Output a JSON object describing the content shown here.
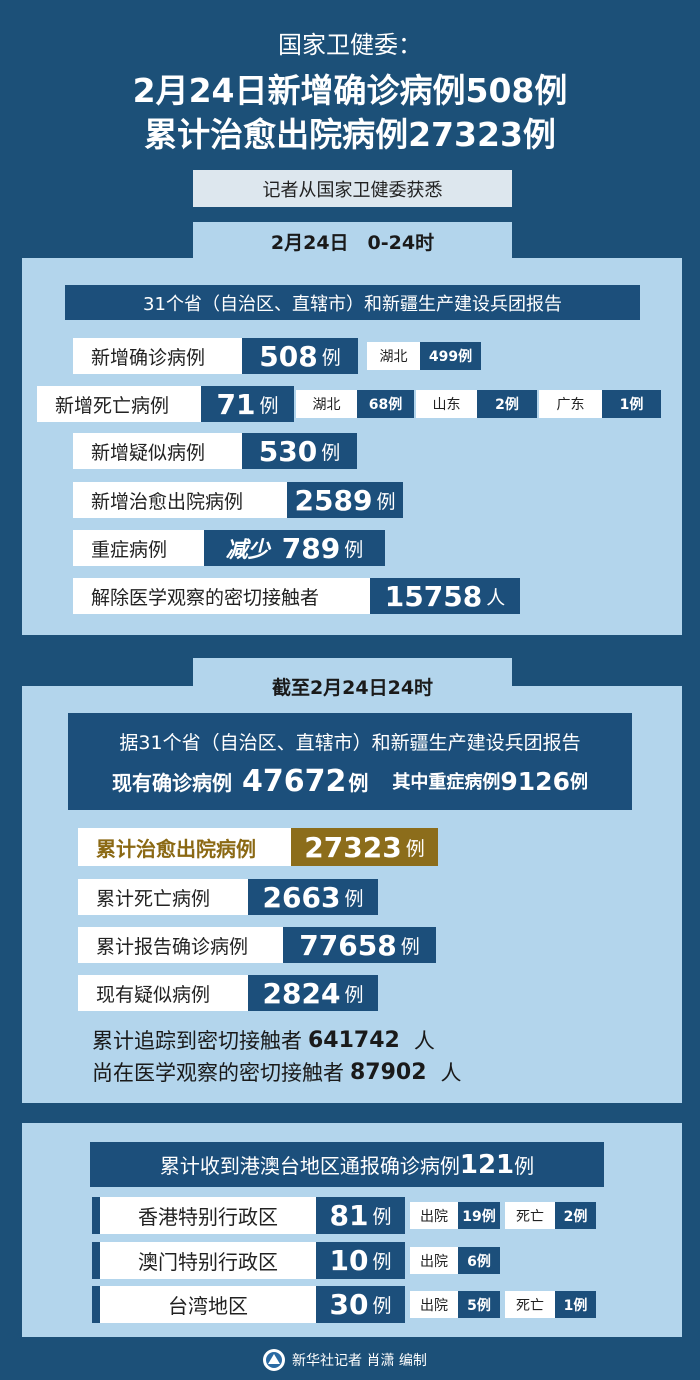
{
  "header": {
    "kicker": "国家卫健委：",
    "title": [
      "2月24日新增确诊病例508例",
      "累计治愈出院病例27323例"
    ]
  },
  "source": "记者从国家卫健委获悉",
  "daily": {
    "period": "2月24日　0-24时",
    "scope": "31个省（自治区、直辖市）和新疆生产建设兵团报告",
    "rows": [
      {
        "label": "新增确诊病例",
        "value": 508,
        "unit": "例",
        "regions": [
          {
            "name": "湖北",
            "count": "499例"
          }
        ]
      },
      {
        "label": "新增死亡病例",
        "value": 71,
        "unit": "例",
        "regions": [
          {
            "name": "湖北",
            "count": "68例"
          },
          {
            "name": "山东",
            "count": "2例"
          },
          {
            "name": "广东",
            "count": "1例"
          }
        ]
      },
      {
        "label": "新增疑似病例",
        "value": 530,
        "unit": "例"
      },
      {
        "label": "新增治愈出院病例",
        "value": 2589,
        "unit": "例"
      },
      {
        "label": "重症病例",
        "change": "减少",
        "value": 789,
        "unit": "例"
      },
      {
        "label": "解除医学观察的密切接触者",
        "value": 15758,
        "unit": "人"
      }
    ]
  },
  "cumulative": {
    "period": "截至2月24日24时",
    "scope": "据31个省（自治区、直辖市）和新疆生产建设兵团报告",
    "current": {
      "label": "现有确诊病例",
      "value": 47672,
      "unit": "例",
      "severe_label": "其中重症病例",
      "severe_value": 9126,
      "severe_unit": "例"
    },
    "rows": [
      {
        "label": "累计治愈出院病例",
        "value": 27323,
        "unit": "例"
      },
      {
        "label": "累计死亡病例",
        "value": 2663,
        "unit": "例"
      },
      {
        "label": "累计报告确诊病例",
        "value": 77658,
        "unit": "例"
      },
      {
        "label": "现有疑似病例",
        "value": 2824,
        "unit": "例"
      }
    ],
    "contacts": [
      {
        "label": "累计追踪到密切接触者",
        "value": 641742,
        "unit": "人"
      },
      {
        "label": "尚在医学观察的密切接触者",
        "value": 87902,
        "unit": "人"
      }
    ]
  },
  "hmt": {
    "title": "累计收到港澳台地区通报确诊病例",
    "value": 121,
    "unit": "例",
    "rows": [
      {
        "region": "香港特别行政区",
        "value": 81,
        "unit": "例",
        "details": [
          {
            "label": "出院",
            "count": "19例"
          },
          {
            "label": "死亡",
            "count": "2例"
          }
        ]
      },
      {
        "region": "澳门特别行政区",
        "value": 10,
        "unit": "例",
        "details": [
          {
            "label": "出院",
            "count": "6例"
          }
        ]
      },
      {
        "region": "台湾地区",
        "value": 30,
        "unit": "例",
        "details": [
          {
            "label": "出院",
            "count": "5例"
          },
          {
            "label": "死亡",
            "count": "1例"
          }
        ]
      }
    ]
  },
  "footer": "新华社记者 肖潇 编制"
}
